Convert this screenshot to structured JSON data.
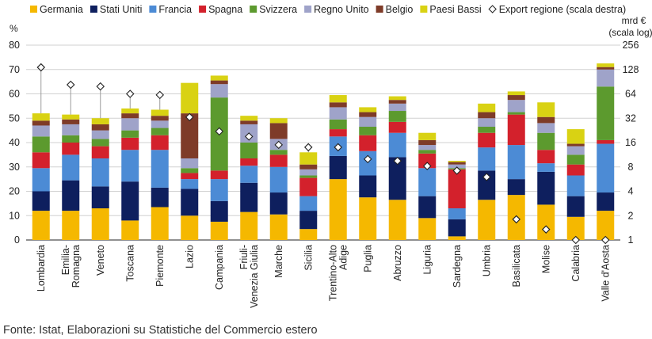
{
  "source": "Fonte: Istat, Elaborazioni su Statistiche del Commercio estero",
  "chart_data": {
    "type": "bar",
    "stacked": true,
    "categories": [
      "Lombardia",
      "Emilia-Romagna",
      "Veneto",
      "Toscana",
      "Piemonte",
      "Lazio",
      "Campania",
      "Friuli-Venezia Giulia",
      "Marche",
      "Sicilia",
      "Trentino-Alto Adige",
      "Puglia",
      "Abruzzo",
      "Liguria",
      "Sardegna",
      "Umbria",
      "Basilicata",
      "Molise",
      "Calabria",
      "Valle d'Aosta"
    ],
    "category_labels": [
      [
        "Lombardia"
      ],
      [
        "Emilia-",
        "Romagna"
      ],
      [
        "Veneto"
      ],
      [
        "Toscana"
      ],
      [
        "Piemonte"
      ],
      [
        "Lazio"
      ],
      [
        "Campania"
      ],
      [
        "Friuli-",
        "Venezia Giulia"
      ],
      [
        "Marche"
      ],
      [
        "Sicilia"
      ],
      [
        "Trentino-Alto",
        "Adige"
      ],
      [
        "Puglia"
      ],
      [
        "Abruzzo"
      ],
      [
        "Liguria"
      ],
      [
        "Sardegna"
      ],
      [
        "Umbria"
      ],
      [
        "Basilicata"
      ],
      [
        "Molise"
      ],
      [
        "Calabria"
      ],
      [
        "Valle d'Aosta"
      ]
    ],
    "ylabel_left": "%",
    "ylabel_right": [
      "mrd €",
      "(scala log)"
    ],
    "ylim_left": [
      0,
      80
    ],
    "yticks_left": [
      0,
      10,
      20,
      30,
      40,
      50,
      60,
      70,
      80
    ],
    "ylim_right": [
      1,
      256
    ],
    "yticks_right": [
      1,
      2,
      4,
      8,
      16,
      32,
      64,
      128,
      256
    ],
    "legend_position": "top",
    "series": [
      {
        "name": "Germania",
        "color": "#F5B800",
        "values": [
          12,
          12,
          13,
          8,
          13.5,
          10,
          7.5,
          11.5,
          10.5,
          4.5,
          25,
          17.5,
          16.5,
          9,
          1.5,
          16.5,
          18.5,
          14.5,
          9.5,
          12
        ]
      },
      {
        "name": "Stati Uniti",
        "color": "#0E1F5E",
        "values": [
          8,
          12.5,
          9,
          16,
          8,
          11,
          8.5,
          12,
          9,
          7.5,
          9.5,
          9,
          17.5,
          9,
          7,
          12,
          6.5,
          13.5,
          8.5,
          7.5
        ]
      },
      {
        "name": "Francia",
        "color": "#4C8BD5",
        "values": [
          9.5,
          10.5,
          11.5,
          13,
          15.5,
          4,
          9,
          7,
          10.5,
          6,
          8,
          10,
          10,
          11.5,
          4.5,
          9.5,
          14,
          3.5,
          8.5,
          20
        ]
      },
      {
        "name": "Spagna",
        "color": "#D3212C",
        "values": [
          6.5,
          5,
          5,
          5,
          6,
          2.5,
          3.5,
          3,
          5,
          7.5,
          3,
          6.5,
          4.5,
          6,
          16,
          6,
          12.5,
          5.5,
          4.5,
          1.5
        ]
      },
      {
        "name": "Svizzera",
        "color": "#5C9A2E",
        "values": [
          6.5,
          3,
          3,
          3,
          3,
          2,
          30,
          6.5,
          2,
          1,
          4,
          3.5,
          4.5,
          1.5,
          0.5,
          2.5,
          1,
          7,
          4,
          22
        ]
      },
      {
        "name": "Regno Unito",
        "color": "#9FA3C9",
        "values": [
          4.5,
          4.5,
          3.5,
          5,
          3,
          4,
          5.5,
          7.5,
          4.5,
          2.5,
          5,
          4,
          3,
          2,
          1.5,
          3.5,
          5,
          4,
          3.5,
          7
        ]
      },
      {
        "name": "Belgio",
        "color": "#7E3B28",
        "values": [
          2,
          2,
          2.5,
          2,
          2,
          18.5,
          1.5,
          1.5,
          6.5,
          2,
          2,
          2,
          1.5,
          2,
          1,
          2.5,
          2,
          2.5,
          1,
          1
        ]
      },
      {
        "name": "Paesi Bassi",
        "color": "#D9D213",
        "values": [
          3,
          2,
          2.5,
          2,
          2.5,
          12.5,
          2,
          2,
          2,
          5,
          3,
          2,
          1.5,
          3,
          0.5,
          3.5,
          1.5,
          6,
          6,
          1.5
        ]
      }
    ],
    "export_series": {
      "name": "Export regione (scala destra)",
      "marker": "diamond",
      "values": [
        136,
        83,
        79,
        64,
        62,
        33,
        22,
        19,
        15,
        14,
        14,
        10,
        9.5,
        8.2,
        7.2,
        6,
        1.8,
        1.35,
        1,
        1
      ]
    }
  }
}
